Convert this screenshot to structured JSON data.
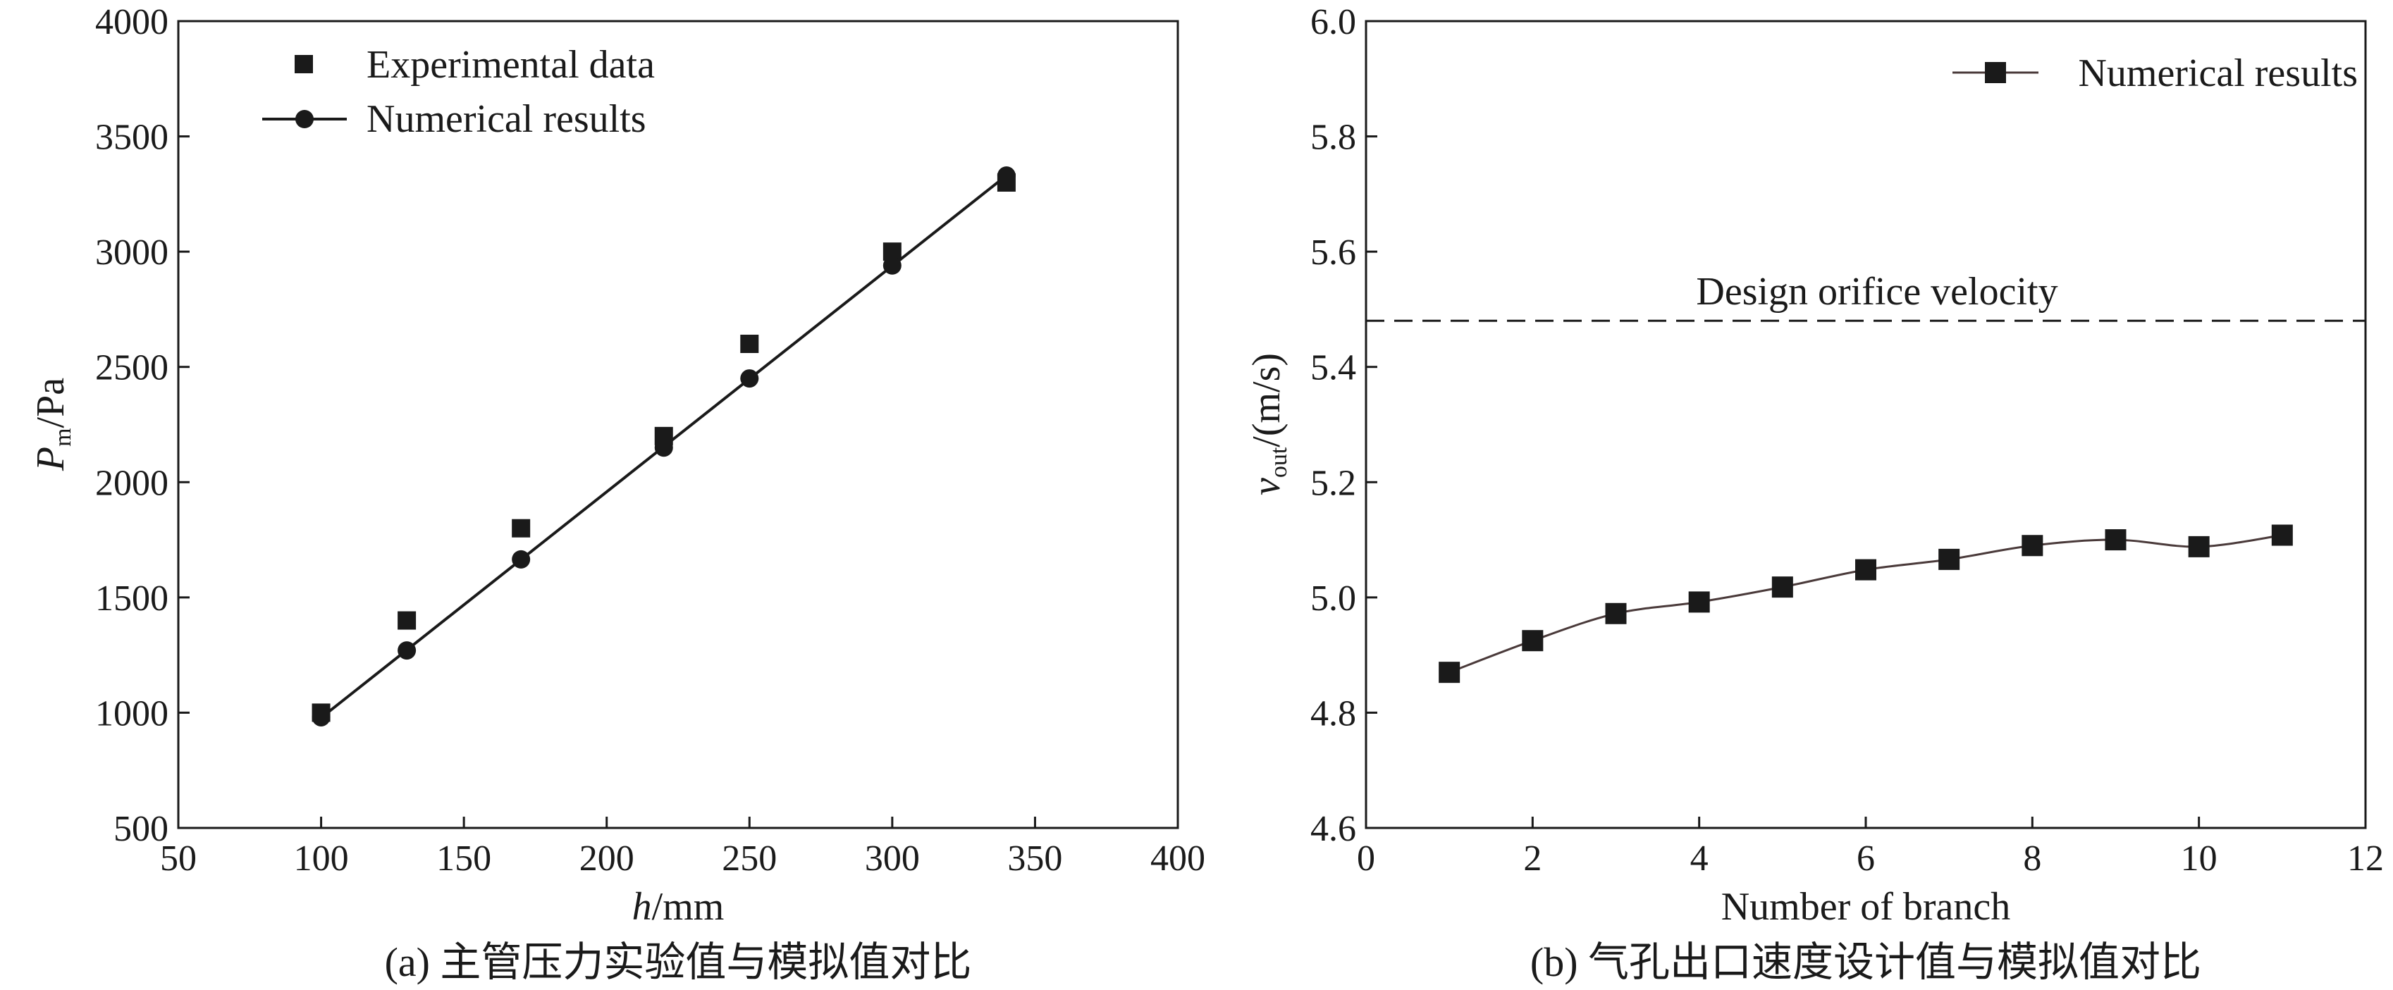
{
  "chart_data": [
    {
      "type": "scatter",
      "panel_caption": "(a) 主管压力实验值与模拟值对比",
      "xlabel_italic": "h",
      "xlabel_unit": "/mm",
      "ylabel_italic": "P",
      "ylabel_sub": "m",
      "ylabel_unit": "/Pa",
      "xlim": [
        50,
        400
      ],
      "ylim": [
        500,
        4000
      ],
      "xticks": [
        50,
        100,
        150,
        200,
        250,
        300,
        350,
        400
      ],
      "yticks": [
        500,
        1000,
        1500,
        2000,
        2500,
        3000,
        3500,
        4000
      ],
      "grid": false,
      "legend_position": "top-left",
      "series": [
        {
          "name": "Experimental data",
          "marker": "square",
          "line": false,
          "x": [
            100,
            130,
            170,
            220,
            250,
            300,
            340
          ],
          "y": [
            1000,
            1400,
            1800,
            2200,
            2600,
            3000,
            3300
          ]
        },
        {
          "name": "Numerical results",
          "marker": "circle",
          "line": true,
          "x": [
            100,
            130,
            170,
            220,
            250,
            300,
            340
          ],
          "y": [
            980,
            1270,
            1665,
            2150,
            2450,
            2940,
            3330
          ]
        }
      ],
      "colors": {
        "marker": "#1a1a1a",
        "line": "#1a1a1a"
      }
    },
    {
      "type": "line",
      "panel_caption": "(b) 气孔出口速度设计值与模拟值对比",
      "xlabel": "Number of branch",
      "ylabel_italic": "v",
      "ylabel_sub": "out",
      "ylabel_unit": "/(m/s)",
      "xlim": [
        0,
        12
      ],
      "ylim": [
        4.6,
        6.0
      ],
      "xticks": [
        0,
        2,
        4,
        6,
        8,
        10,
        12
      ],
      "yticks": [
        4.6,
        4.8,
        5.0,
        5.2,
        5.4,
        5.6,
        5.8,
        6.0
      ],
      "grid": false,
      "legend_position": "top-right",
      "series": [
        {
          "name": "Numerical results",
          "marker": "square",
          "line": true,
          "smooth": true,
          "x": [
            1,
            2,
            3,
            4,
            5,
            6,
            7,
            8,
            9,
            10,
            11
          ],
          "y": [
            4.87,
            4.925,
            4.972,
            4.992,
            5.018,
            5.048,
            5.066,
            5.09,
            5.1,
            5.088,
            5.108
          ]
        }
      ],
      "reference_line": {
        "label": "Design orifice velocity",
        "y": 5.48,
        "style": "dashed"
      },
      "colors": {
        "marker": "#1a1a1a",
        "line": "#4a3a3a"
      }
    }
  ]
}
